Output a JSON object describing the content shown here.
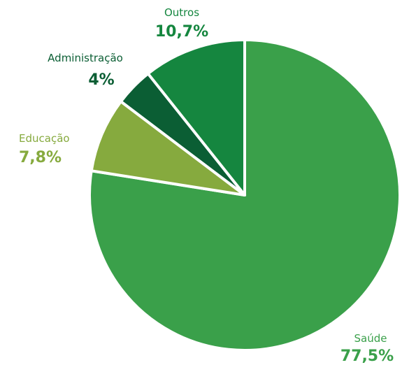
{
  "chart_data": {
    "type": "pie",
    "start_angle_deg": 0,
    "direction": "clockwise",
    "slices": [
      {
        "label": "Saúde",
        "value": 77.5,
        "value_label": "77,5%",
        "color": "#3aa04a",
        "label_color": "#3aa04a"
      },
      {
        "label": "Educação",
        "value": 7.8,
        "value_label": "7,8%",
        "color": "#86aa3e",
        "label_color": "#86aa3e"
      },
      {
        "label": "Administração",
        "value": 4,
        "value_label": "4%",
        "color": "#0b5e34",
        "label_color": "#0b5e34"
      },
      {
        "label": "Outros",
        "value": 10.7,
        "value_label": "10,7%",
        "color": "#15863f",
        "label_color": "#15863f"
      }
    ]
  }
}
